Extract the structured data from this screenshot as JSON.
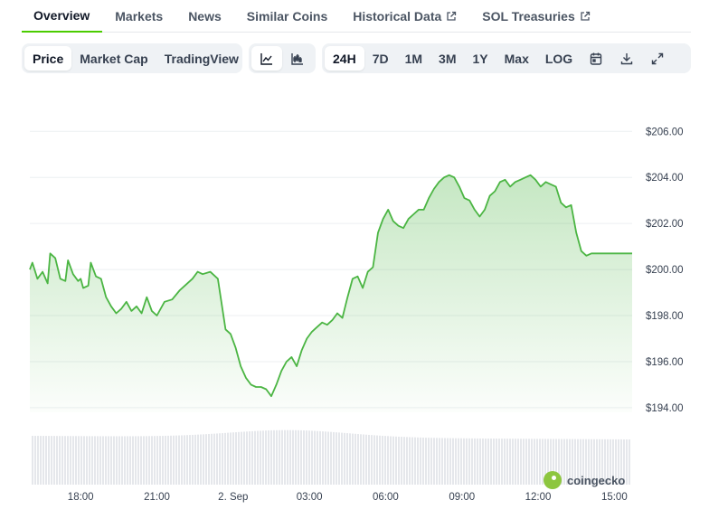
{
  "tabs": [
    {
      "label": "Overview",
      "active": true,
      "external": false
    },
    {
      "label": "Markets",
      "active": false,
      "external": false
    },
    {
      "label": "News",
      "active": false,
      "external": false
    },
    {
      "label": "Similar Coins",
      "active": false,
      "external": false
    },
    {
      "label": "Historical Data",
      "active": false,
      "external": true
    },
    {
      "label": "SOL Treasuries",
      "active": false,
      "external": true
    }
  ],
  "toolbar": {
    "view_buttons": [
      {
        "label": "Price",
        "active": true
      },
      {
        "label": "Market Cap",
        "active": false
      },
      {
        "label": "TradingView",
        "active": false
      }
    ],
    "chart_type_icons": [
      "line-chart-icon",
      "candlestick-chart-icon"
    ],
    "ranges": [
      {
        "label": "24H",
        "active": true
      },
      {
        "label": "7D",
        "active": false
      },
      {
        "label": "1M",
        "active": false
      },
      {
        "label": "3M",
        "active": false
      },
      {
        "label": "1Y",
        "active": false
      },
      {
        "label": "Max",
        "active": false
      },
      {
        "label": "LOG",
        "active": false
      }
    ],
    "action_icons": [
      "calendar-icon",
      "download-icon",
      "fullscreen-icon"
    ]
  },
  "watermark": "coingecko",
  "colors": {
    "line": "#4bb543",
    "accent": "#4bcc00",
    "volume": "#e5e7eb"
  },
  "chart_data": {
    "type": "area",
    "y_ticks": [
      "$206.00",
      "$204.00",
      "$202.00",
      "$200.00",
      "$198.00",
      "$196.00",
      "$194.00"
    ],
    "ylim": [
      193.8,
      206.6
    ],
    "x_ticks": [
      "18:00",
      "21:00",
      "2. Sep",
      "03:00",
      "06:00",
      "09:00",
      "12:00",
      "15:00"
    ],
    "xlim": [
      16.0,
      39.7
    ],
    "tick_hours": [
      18,
      21,
      24,
      27,
      30,
      33,
      36,
      39
    ],
    "grid": true,
    "legend": "none",
    "series": [
      {
        "x": [
          16.0,
          16.1,
          16.3,
          16.5,
          16.7,
          16.8,
          17.0,
          17.2,
          17.4,
          17.5,
          17.7,
          17.9,
          18.0,
          18.1,
          18.3,
          18.4,
          18.6,
          18.8,
          19.0,
          19.2,
          19.4,
          19.6,
          19.8,
          20.0,
          20.2,
          20.4,
          20.6,
          20.8,
          21.0,
          21.3,
          21.6,
          21.9,
          22.1,
          22.4,
          22.6,
          22.8,
          23.1,
          23.4,
          23.7,
          23.9,
          24.1,
          24.3,
          24.5,
          24.7,
          24.9,
          25.1,
          25.3,
          25.5,
          25.7,
          25.9,
          26.1,
          26.3,
          26.5,
          26.7,
          26.9,
          27.1,
          27.3,
          27.5,
          27.7,
          27.9,
          28.1,
          28.3,
          28.5,
          28.7,
          28.9,
          29.1,
          29.3,
          29.5,
          29.7,
          29.9,
          30.1,
          30.3,
          30.5,
          30.7,
          30.9,
          31.1,
          31.3,
          31.5,
          31.7,
          31.9,
          32.1,
          32.3,
          32.5,
          32.7,
          32.9,
          33.1,
          33.3,
          33.5,
          33.7,
          33.9,
          34.1,
          34.3,
          34.5,
          34.7,
          34.9,
          35.1,
          35.3,
          35.5,
          35.7,
          35.9,
          36.1,
          36.3,
          36.5,
          36.7,
          36.9,
          37.1,
          37.3,
          37.5,
          37.7,
          37.9,
          38.1,
          38.3,
          38.5,
          38.7,
          38.9,
          39.1,
          39.3,
          39.5,
          39.7
        ],
        "y": [
          200.0,
          200.3,
          199.6,
          199.9,
          199.4,
          200.7,
          200.5,
          199.6,
          199.5,
          200.4,
          199.8,
          199.5,
          199.6,
          199.2,
          199.3,
          200.3,
          199.7,
          199.6,
          198.8,
          198.4,
          198.1,
          198.3,
          198.6,
          198.2,
          198.4,
          198.1,
          198.8,
          198.2,
          198.0,
          198.6,
          198.7,
          199.1,
          199.3,
          199.6,
          199.9,
          199.8,
          199.9,
          199.6,
          197.4,
          197.2,
          196.6,
          195.8,
          195.3,
          195.0,
          194.9,
          194.9,
          194.8,
          194.5,
          195.0,
          195.6,
          196.0,
          196.2,
          195.8,
          196.5,
          197.0,
          197.3,
          197.5,
          197.7,
          197.6,
          197.8,
          198.1,
          197.9,
          198.8,
          199.6,
          199.7,
          199.2,
          199.9,
          200.1,
          201.6,
          202.2,
          202.6,
          202.1,
          201.9,
          201.8,
          202.2,
          202.4,
          202.6,
          202.6,
          203.1,
          203.5,
          203.8,
          204.0,
          204.1,
          204.0,
          203.6,
          203.1,
          203.0,
          202.6,
          202.3,
          202.6,
          203.2,
          203.4,
          203.8,
          203.9,
          203.6,
          203.8,
          203.9,
          204.0,
          204.1,
          203.9,
          203.6,
          203.8,
          203.7,
          203.6,
          202.9,
          202.7,
          202.8,
          201.6,
          200.8,
          200.6,
          200.7,
          200.7,
          200.7,
          200.7,
          200.7,
          200.7,
          200.7,
          200.7,
          200.7
        ]
      }
    ]
  }
}
